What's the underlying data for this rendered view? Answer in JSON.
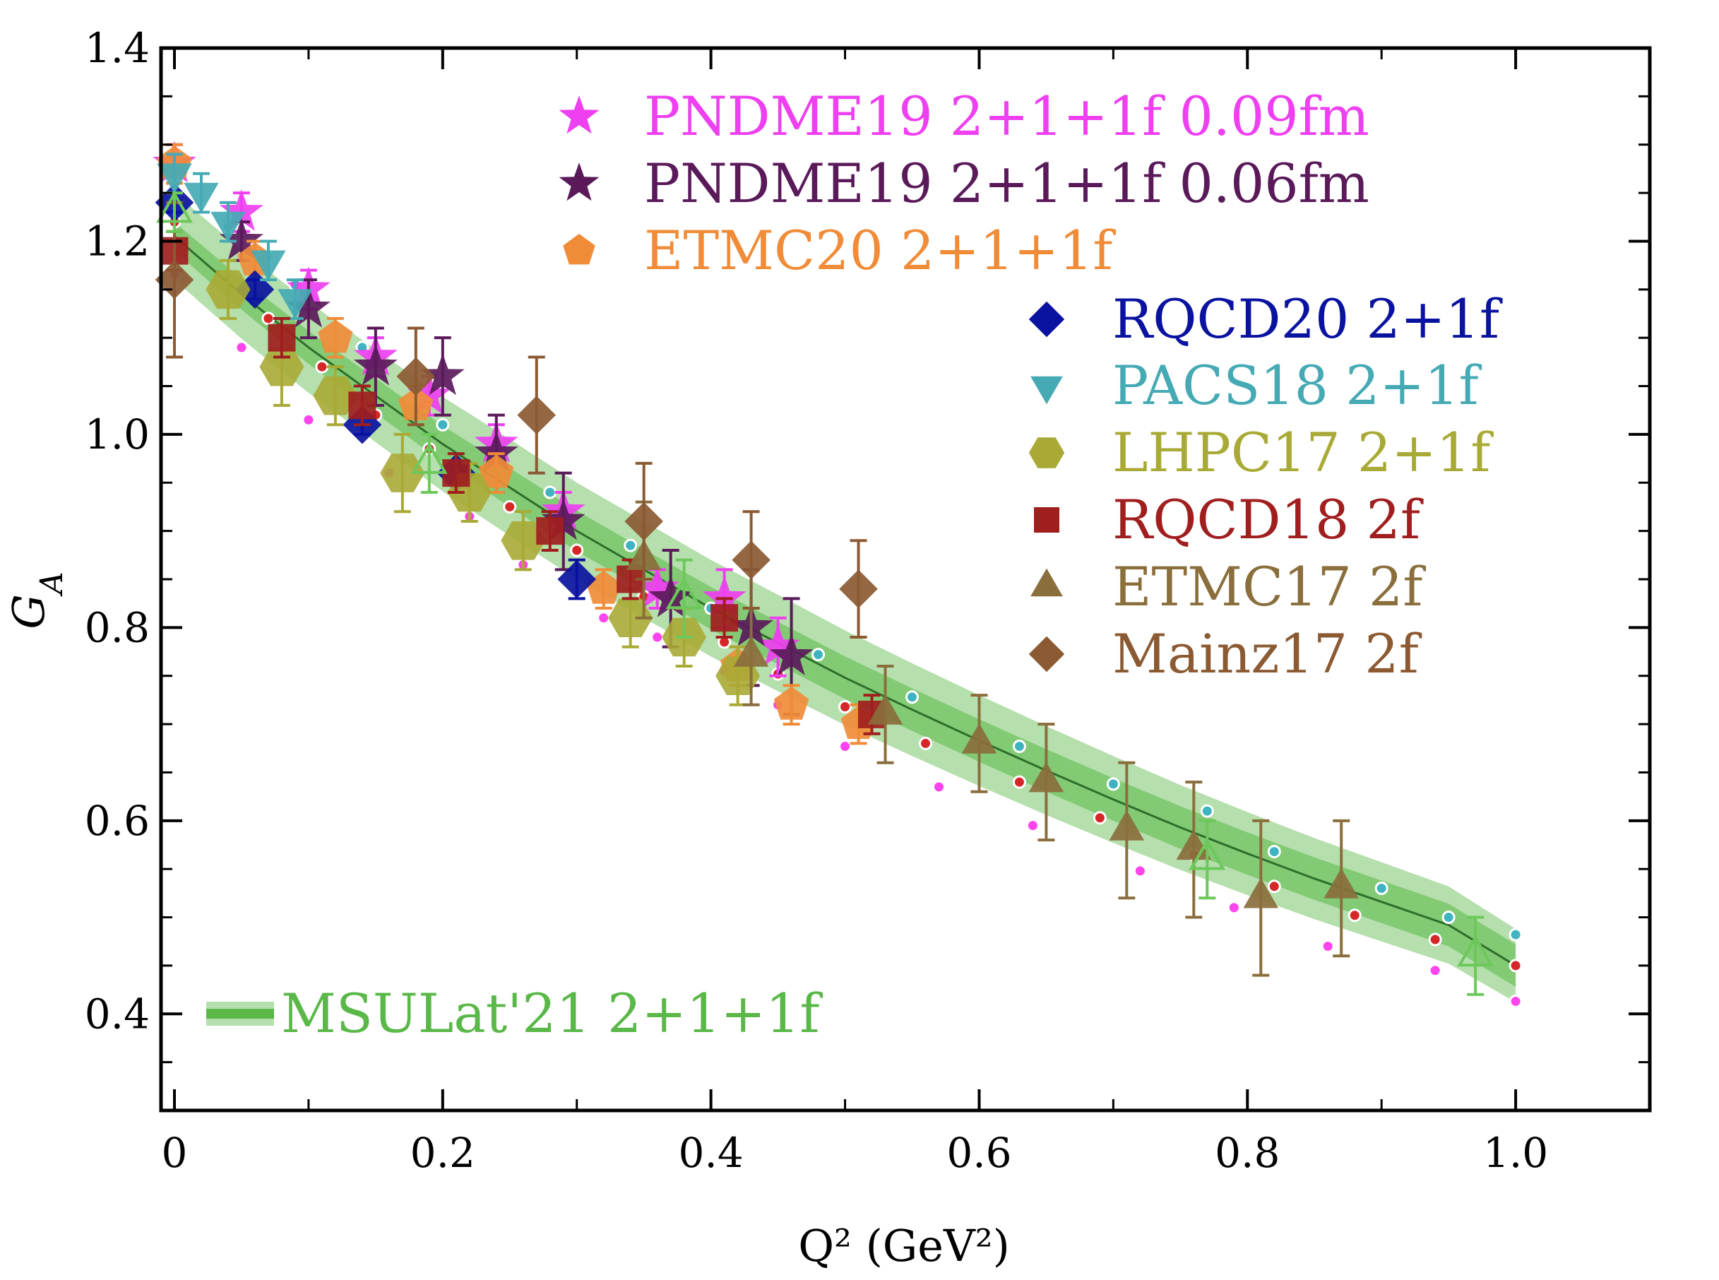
{
  "chart_data": {
    "type": "scatter",
    "title": "",
    "xlabel": "Q² (GeV²)",
    "ylabel": "G_A",
    "xlim": [
      -0.01,
      1.1
    ],
    "ylim": [
      0.3,
      1.4
    ],
    "x_ticks": [
      0,
      0.2,
      0.4,
      0.6,
      0.8,
      1.0
    ],
    "x_tick_labels": [
      "0",
      "0.2",
      "0.4",
      "0.6",
      "0.8",
      "1.0"
    ],
    "y_ticks": [
      0.4,
      0.6,
      0.8,
      1.0,
      1.2,
      1.4
    ],
    "y_tick_labels": [
      "0.4",
      "0.6",
      "0.8",
      "1.0",
      "1.2",
      "1.4"
    ],
    "band": {
      "name": "MSULat'21 2+1+1f",
      "color": "#5ab848",
      "x": [
        0,
        0.05,
        0.1,
        0.15,
        0.2,
        0.25,
        0.3,
        0.35,
        0.4,
        0.45,
        0.5,
        0.55,
        0.6,
        0.65,
        0.7,
        0.75,
        0.8,
        0.85,
        0.9,
        0.95,
        1.0
      ],
      "center": [
        1.205,
        1.145,
        1.09,
        1.04,
        0.99,
        0.945,
        0.9,
        0.86,
        0.82,
        0.784,
        0.748,
        0.715,
        0.683,
        0.652,
        0.622,
        0.593,
        0.566,
        0.54,
        0.516,
        0.492,
        0.45
      ],
      "inner_halfwidth": [
        0.015,
        0.016,
        0.017,
        0.018,
        0.019,
        0.02,
        0.021,
        0.021,
        0.022,
        0.022,
        0.022,
        0.022,
        0.022,
        0.022,
        0.022,
        0.022,
        0.022,
        0.022,
        0.022,
        0.022,
        0.022
      ],
      "outer_halfwidth": [
        0.045,
        0.046,
        0.047,
        0.048,
        0.049,
        0.05,
        0.05,
        0.05,
        0.05,
        0.05,
        0.049,
        0.048,
        0.047,
        0.046,
        0.045,
        0.044,
        0.043,
        0.042,
        0.041,
        0.04,
        0.038
      ]
    },
    "fit_dots": [
      {
        "color": "#d62728",
        "x": [
          0.0,
          0.07,
          0.11,
          0.15,
          0.19,
          0.25,
          0.3,
          0.35,
          0.41,
          0.45,
          0.5,
          0.56,
          0.63,
          0.69,
          0.76,
          0.82,
          0.88,
          0.94,
          1.0
        ],
        "y": [
          1.22,
          1.12,
          1.07,
          1.02,
          0.985,
          0.925,
          0.88,
          0.832,
          0.785,
          0.752,
          0.718,
          0.68,
          0.64,
          0.603,
          0.565,
          0.532,
          0.502,
          0.477,
          0.45
        ]
      },
      {
        "color": "#ff44ee",
        "x": [
          0.0,
          0.05,
          0.1,
          0.16,
          0.22,
          0.26,
          0.32,
          0.36,
          0.41,
          0.45,
          0.5,
          0.57,
          0.64,
          0.72,
          0.79,
          0.86,
          0.94,
          1.0
        ],
        "y": [
          1.165,
          1.09,
          1.015,
          0.96,
          0.915,
          0.865,
          0.81,
          0.79,
          0.755,
          0.72,
          0.677,
          0.635,
          0.595,
          0.548,
          0.51,
          0.47,
          0.445,
          0.413
        ]
      },
      {
        "color": "#3fb4c0",
        "x": [
          0.0,
          0.04,
          0.09,
          0.14,
          0.2,
          0.28,
          0.34,
          0.4,
          0.48,
          0.55,
          0.63,
          0.7,
          0.77,
          0.82,
          0.9,
          0.95,
          1.0
        ],
        "y": [
          1.27,
          1.215,
          1.155,
          1.09,
          1.01,
          0.94,
          0.885,
          0.82,
          0.772,
          0.728,
          0.677,
          0.638,
          0.61,
          0.568,
          0.53,
          0.5,
          0.482
        ]
      }
    ],
    "series": [
      {
        "name": "PNDME19 2+1+1f 0.09fm",
        "marker": "star",
        "color": "#ee3ff0",
        "points": [
          {
            "x": 0.0,
            "y": 1.28,
            "err": 0.02
          },
          {
            "x": 0.05,
            "y": 1.23,
            "err": 0.02
          },
          {
            "x": 0.1,
            "y": 1.15,
            "err": 0.02
          },
          {
            "x": 0.15,
            "y": 1.08,
            "err": 0.02
          },
          {
            "x": 0.19,
            "y": 1.04,
            "err": 0.02
          },
          {
            "x": 0.24,
            "y": 0.99,
            "err": 0.02
          },
          {
            "x": 0.29,
            "y": 0.92,
            "err": 0.02
          },
          {
            "x": 0.36,
            "y": 0.84,
            "err": 0.02
          },
          {
            "x": 0.41,
            "y": 0.83,
            "err": 0.03
          },
          {
            "x": 0.45,
            "y": 0.78,
            "err": 0.03
          }
        ]
      },
      {
        "name": "PNDME19 2+1+1f 0.06fm",
        "marker": "star",
        "color": "#5a1a5a",
        "points": [
          {
            "x": 0.05,
            "y": 1.2,
            "err": 0.02
          },
          {
            "x": 0.1,
            "y": 1.13,
            "err": 0.03
          },
          {
            "x": 0.15,
            "y": 1.07,
            "err": 0.04
          },
          {
            "x": 0.2,
            "y": 1.06,
            "err": 0.04
          },
          {
            "x": 0.24,
            "y": 0.98,
            "err": 0.04
          },
          {
            "x": 0.29,
            "y": 0.91,
            "err": 0.05
          },
          {
            "x": 0.37,
            "y": 0.83,
            "err": 0.05
          },
          {
            "x": 0.43,
            "y": 0.8,
            "err": 0.06
          },
          {
            "x": 0.46,
            "y": 0.77,
            "err": 0.06
          }
        ]
      },
      {
        "name": "ETMC20 2+1+1f",
        "marker": "pentagon",
        "color": "#f08c38",
        "points": [
          {
            "x": 0.0,
            "y": 1.28,
            "err": 0.02
          },
          {
            "x": 0.06,
            "y": 1.18,
            "err": 0.02
          },
          {
            "x": 0.12,
            "y": 1.1,
            "err": 0.02
          },
          {
            "x": 0.18,
            "y": 1.03,
            "err": 0.02
          },
          {
            "x": 0.24,
            "y": 0.96,
            "err": 0.02
          },
          {
            "x": 0.32,
            "y": 0.84,
            "err": 0.02
          },
          {
            "x": 0.42,
            "y": 0.76,
            "err": 0.02
          },
          {
            "x": 0.46,
            "y": 0.72,
            "err": 0.02
          },
          {
            "x": 0.51,
            "y": 0.7,
            "err": 0.02
          }
        ]
      },
      {
        "name": "RQCD20 2+1f",
        "marker": "diamond",
        "color": "#0a12a0",
        "points": [
          {
            "x": 0.0,
            "y": 1.24,
            "err": 0.01
          },
          {
            "x": 0.06,
            "y": 1.15,
            "err": 0.01
          },
          {
            "x": 0.14,
            "y": 1.01,
            "err": 0.01
          },
          {
            "x": 0.21,
            "y": 0.96,
            "err": 0.01
          },
          {
            "x": 0.3,
            "y": 0.85,
            "err": 0.02
          }
        ]
      },
      {
        "name": "PACS18 2+1f",
        "marker": "triangle-down",
        "color": "#45aab4",
        "points": [
          {
            "x": 0.0,
            "y": 1.27,
            "err": 0.02
          },
          {
            "x": 0.02,
            "y": 1.25,
            "err": 0.02
          },
          {
            "x": 0.04,
            "y": 1.22,
            "err": 0.02
          },
          {
            "x": 0.07,
            "y": 1.18,
            "err": 0.02
          },
          {
            "x": 0.09,
            "y": 1.14,
            "err": 0.02
          }
        ]
      },
      {
        "name": "LHPC17 2+1f",
        "marker": "hexagon",
        "color": "#a8aa35",
        "points": [
          {
            "x": 0.04,
            "y": 1.15,
            "err": 0.03
          },
          {
            "x": 0.08,
            "y": 1.07,
            "err": 0.04
          },
          {
            "x": 0.12,
            "y": 1.04,
            "err": 0.03
          },
          {
            "x": 0.17,
            "y": 0.96,
            "err": 0.04
          },
          {
            "x": 0.22,
            "y": 0.94,
            "err": 0.03
          },
          {
            "x": 0.26,
            "y": 0.89,
            "err": 0.03
          },
          {
            "x": 0.34,
            "y": 0.81,
            "err": 0.03
          },
          {
            "x": 0.38,
            "y": 0.79,
            "err": 0.03
          },
          {
            "x": 0.42,
            "y": 0.75,
            "err": 0.03
          }
        ]
      },
      {
        "name": "RQCD18 2f",
        "marker": "square",
        "color": "#a01e1e",
        "points": [
          {
            "x": 0.0,
            "y": 1.19,
            "err": 0.02
          },
          {
            "x": 0.08,
            "y": 1.1,
            "err": 0.02
          },
          {
            "x": 0.14,
            "y": 1.03,
            "err": 0.02
          },
          {
            "x": 0.21,
            "y": 0.96,
            "err": 0.02
          },
          {
            "x": 0.28,
            "y": 0.9,
            "err": 0.02
          },
          {
            "x": 0.34,
            "y": 0.85,
            "err": 0.02
          },
          {
            "x": 0.41,
            "y": 0.81,
            "err": 0.02
          },
          {
            "x": 0.52,
            "y": 0.71,
            "err": 0.02
          }
        ]
      },
      {
        "name": "ETMC17 2f",
        "marker": "triangle-up",
        "color": "#8a6e3c",
        "points": [
          {
            "x": 0.35,
            "y": 0.87,
            "err": 0.06
          },
          {
            "x": 0.43,
            "y": 0.77,
            "err": 0.05
          },
          {
            "x": 0.53,
            "y": 0.71,
            "err": 0.05
          },
          {
            "x": 0.6,
            "y": 0.68,
            "err": 0.05
          },
          {
            "x": 0.65,
            "y": 0.64,
            "err": 0.06
          },
          {
            "x": 0.71,
            "y": 0.59,
            "err": 0.07
          },
          {
            "x": 0.76,
            "y": 0.57,
            "err": 0.07
          },
          {
            "x": 0.81,
            "y": 0.52,
            "err": 0.08
          },
          {
            "x": 0.87,
            "y": 0.53,
            "err": 0.07
          }
        ]
      },
      {
        "name": "Mainz17 2f",
        "marker": "diamond",
        "color": "#8b5a32",
        "points": [
          {
            "x": 0.0,
            "y": 1.16,
            "err": 0.08
          },
          {
            "x": 0.18,
            "y": 1.06,
            "err": 0.05
          },
          {
            "x": 0.27,
            "y": 1.02,
            "err": 0.06
          },
          {
            "x": 0.35,
            "y": 0.91,
            "err": 0.06
          },
          {
            "x": 0.43,
            "y": 0.87,
            "err": 0.05
          },
          {
            "x": 0.51,
            "y": 0.84,
            "err": 0.05
          }
        ]
      },
      {
        "name": "MSULat'21 2+1+1f",
        "marker": "open-triangle",
        "color": "#6cc85a",
        "points": [
          {
            "x": 0.0,
            "y": 1.23,
            "err": 0.02
          },
          {
            "x": 0.19,
            "y": 0.97,
            "err": 0.03
          },
          {
            "x": 0.38,
            "y": 0.83,
            "err": 0.04
          },
          {
            "x": 0.77,
            "y": 0.56,
            "err": 0.04
          },
          {
            "x": 0.97,
            "y": 0.46,
            "err": 0.04
          }
        ]
      }
    ],
    "legend": [
      {
        "label": "PNDME19 2+1+1f 0.09fm",
        "marker": "star",
        "color": "#ee3ff0"
      },
      {
        "label": "PNDME19 2+1+1f 0.06fm",
        "marker": "star",
        "color": "#5a1a5a"
      },
      {
        "label": "ETMC20 2+1+1f",
        "marker": "pentagon",
        "color": "#f08c38"
      },
      {
        "label": "RQCD20 2+1f",
        "marker": "diamond",
        "color": "#0a12a0"
      },
      {
        "label": "PACS18 2+1f",
        "marker": "triangle-down",
        "color": "#45aab4"
      },
      {
        "label": "LHPC17 2+1f",
        "marker": "hexagon",
        "color": "#a8aa35"
      },
      {
        "label": "RQCD18 2f",
        "marker": "square",
        "color": "#a01e1e"
      },
      {
        "label": "ETMC17 2f",
        "marker": "triangle-up",
        "color": "#8a6e3c"
      },
      {
        "label": "Mainz17 2f",
        "marker": "diamond",
        "color": "#8b5a32"
      },
      {
        "label": "MSULat'21 2+1+1f",
        "marker": "band",
        "color": "#5ab848"
      }
    ]
  }
}
